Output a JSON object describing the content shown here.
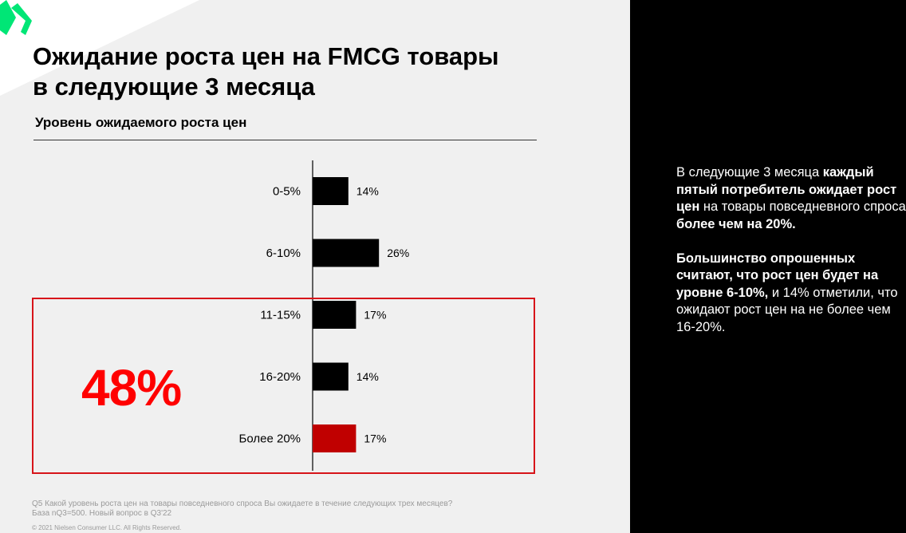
{
  "slide": {
    "title_line1": "Ожидание роста цен на FMCG товары",
    "title_line2": "в следующие 3 месяца",
    "highlight_total": "48%",
    "footnote_line1": "Q5  Какой уровень роста цен на товары повседневного спроса Вы ожидаете в течение следующих трех месяцев?",
    "footnote_line2": "База nQ3=500. Новый вопрос в Q3'22",
    "copyright": "© 2021 Nielsen Consumer LLC. All Rights Reserved.",
    "logo_icon": "nielsen-chevron-logo-icon"
  },
  "chart_data": {
    "type": "bar",
    "orientation": "horizontal",
    "title": "Уровень ожидаемого роста цен",
    "categories": [
      "0-5%",
      "6-10%",
      "11-15%",
      "16-20%",
      "Более 20%"
    ],
    "values": [
      14,
      26,
      17,
      14,
      17
    ],
    "labels": [
      "14%",
      "26%",
      "17%",
      "14%",
      "17%"
    ],
    "unit": "%",
    "bar_colors": [
      "#000000",
      "#000000",
      "#000000",
      "#000000",
      "#c00000"
    ],
    "highlighted_categories": [
      "11-15%",
      "16-20%",
      "Более 20%"
    ],
    "xlim": [
      0,
      100
    ],
    "grid": false,
    "legend": "none"
  },
  "panel": {
    "p1": [
      {
        "text": "В следующие 3 месяца ",
        "bold": false
      },
      {
        "text": "каждый пятый потребитель ожидает рост цен",
        "bold": true
      },
      {
        "text": " на товары повседневного спроса ",
        "bold": false
      },
      {
        "text": "более чем на 20%.",
        "bold": true
      }
    ],
    "p2": [
      {
        "text": "Большинство опрошенных считают, что рост цен будет на уровне 6-10%,",
        "bold": true
      },
      {
        "text": " и 14% отметили, что ожидают рост цен на не более чем 16-20%.",
        "bold": false
      }
    ]
  },
  "colors": {
    "accent_green": "#00e676",
    "accent_red": "#d7141a",
    "big_number_red": "#ff0000",
    "panel_bg": "#000000"
  }
}
